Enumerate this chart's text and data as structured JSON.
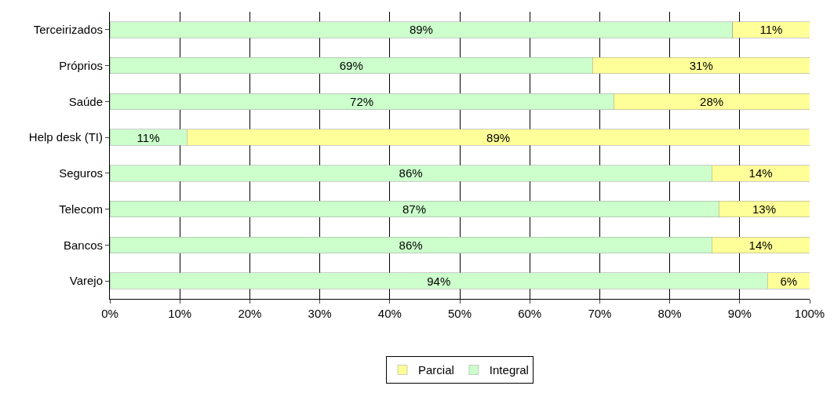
{
  "chart_data": {
    "type": "bar",
    "orientation": "horizontal",
    "stacked": true,
    "categories": [
      "Terceirizados",
      "Próprios",
      "Saúde",
      "Help desk (TI)",
      "Seguros",
      "Telecom",
      "Bancos",
      "Varejo"
    ],
    "series": [
      {
        "name": "Integral",
        "color": "#ccffcc",
        "values": [
          89,
          69,
          72,
          11,
          86,
          87,
          86,
          94
        ],
        "value_labels": [
          "89%",
          "69%",
          "72%",
          "11%",
          "86%",
          "87%",
          "86%",
          "94%"
        ]
      },
      {
        "name": "Parcial",
        "color": "#ffff99",
        "values": [
          11,
          31,
          28,
          89,
          14,
          13,
          14,
          6
        ],
        "value_labels": [
          "11%",
          "31%",
          "28%",
          "89%",
          "14%",
          "13%",
          "14%",
          "6%"
        ]
      }
    ],
    "xlim": [
      0,
      100
    ],
    "xticks": [
      {
        "value": 0,
        "label": "0%"
      },
      {
        "value": 10,
        "label": "10%"
      },
      {
        "value": 20,
        "label": "20%"
      },
      {
        "value": 30,
        "label": "30%"
      },
      {
        "value": 40,
        "label": "40%"
      },
      {
        "value": 50,
        "label": "50%"
      },
      {
        "value": 60,
        "label": "60%"
      },
      {
        "value": 70,
        "label": "70%"
      },
      {
        "value": 80,
        "label": "80%"
      },
      {
        "value": 90,
        "label": "90%"
      },
      {
        "value": 100,
        "label": "100%"
      }
    ],
    "grid": "x",
    "legend": "bottom"
  }
}
